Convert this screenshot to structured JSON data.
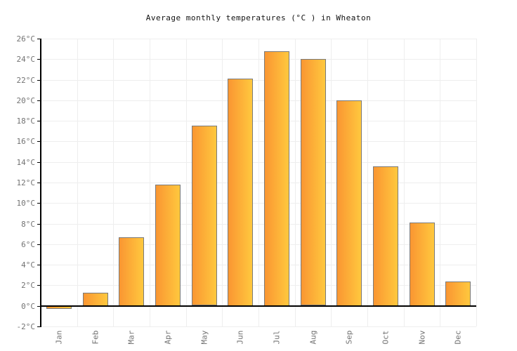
{
  "title": "Average monthly temperatures (°C ) in Wheaton",
  "chart_data": {
    "type": "bar",
    "title": "Average monthly temperatures (°C ) in Wheaton",
    "xlabel": "",
    "ylabel": "",
    "categories": [
      "Jan",
      "Feb",
      "Mar",
      "Apr",
      "May",
      "Jun",
      "Jul",
      "Aug",
      "Sep",
      "Oct",
      "Nov",
      "Dec"
    ],
    "values": [
      -0.3,
      1.3,
      6.7,
      11.8,
      17.5,
      22.1,
      24.8,
      24.0,
      20.0,
      13.6,
      8.1,
      2.4
    ],
    "ylim": [
      -2,
      26
    ],
    "ytick_step": 2,
    "ytick_labels": [
      "-2°C",
      "0°C",
      "2°C",
      "4°C",
      "6°C",
      "8°C",
      "10°C",
      "12°C",
      "14°C",
      "16°C",
      "18°C",
      "20°C",
      "22°C",
      "24°C",
      "26°C"
    ],
    "grid": true,
    "legend": "none",
    "colors": {
      "bar_gradient_left": "#fa9632",
      "bar_gradient_right": "#ffc83e",
      "bar_border": "#7a7a7a",
      "axis": "#000000",
      "gridline": "#eeeeee",
      "tick_label": "#737373",
      "title_text": "#111111",
      "background": "#ffffff"
    }
  }
}
